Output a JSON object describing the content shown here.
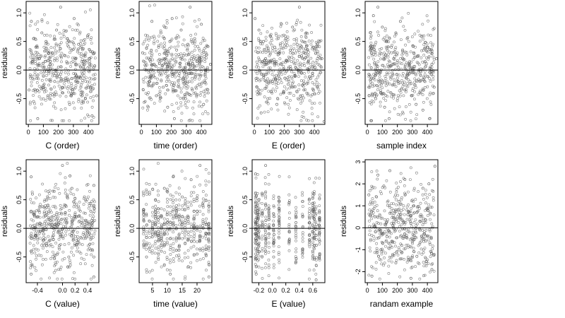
{
  "figure": {
    "background": "#ffffff",
    "point_color": "#555555",
    "axis_color": "#000000"
  },
  "chart_data": [
    {
      "type": "scatter",
      "xlabel": "C (order)",
      "ylabel": "residuals",
      "xlim": [
        -15,
        470
      ],
      "ylim": [
        -0.95,
        1.2
      ],
      "xticks": [
        0,
        100,
        200,
        300,
        400
      ],
      "xtick_labels": [
        "0",
        "100",
        "200",
        "300",
        "400"
      ],
      "yticks": [
        -0.5,
        0.0,
        0.5,
        1.0
      ],
      "ytick_labels": [
        "-0.5",
        "0.0",
        "0.5",
        "1.0"
      ],
      "hline": 0,
      "n_points": 470,
      "x": [
        5,
        20,
        35,
        50,
        62,
        75,
        90,
        105,
        118,
        130,
        145,
        160,
        175,
        188,
        200,
        215,
        230,
        245,
        260,
        275,
        290,
        305,
        320,
        335,
        350,
        365,
        380,
        395,
        410,
        425,
        440,
        455
      ],
      "y": [
        -0.35,
        0.85,
        -0.55,
        0.4,
        -0.85,
        0.2,
        0.65,
        -0.25,
        0.5,
        -0.45,
        0.1,
        0.3,
        -0.2,
        0.7,
        0.05,
        1.1,
        -0.4,
        0.25,
        0.55,
        -0.6,
        0.35,
        0.9,
        -0.1,
        0.45,
        -0.3,
        0.15,
        -0.5,
        0.6,
        0.2,
        -0.8,
        0.3,
        -0.45
      ]
    },
    {
      "type": "scatter",
      "xlabel": "time (order)",
      "ylabel": "residuals",
      "xlim": [
        -15,
        470
      ],
      "ylim": [
        -0.95,
        1.2
      ],
      "xticks": [
        0,
        100,
        200,
        300,
        400
      ],
      "xtick_labels": [
        "0",
        "100",
        "200",
        "300",
        "400"
      ],
      "yticks": [
        -0.5,
        0.0,
        0.5,
        1.0
      ],
      "ytick_labels": [
        "-0.5",
        "0.0",
        "0.5",
        "1.0"
      ],
      "hline": 0,
      "n_points": 470,
      "x": [
        8,
        25,
        40,
        55,
        70,
        85,
        100,
        115,
        130,
        145,
        160,
        175,
        190,
        205,
        220,
        235,
        250,
        265,
        280,
        295,
        310,
        325,
        340,
        355,
        370,
        385,
        400,
        415,
        430,
        445,
        460
      ],
      "y": [
        0.3,
        -0.55,
        0.6,
        -0.2,
        0.85,
        0.1,
        -0.45,
        0.4,
        0.65,
        -0.3,
        0.2,
        -0.65,
        0.5,
        0.9,
        -0.85,
        0.35,
        -0.1,
        0.7,
        0.25,
        -0.5,
        0.45,
        1.1,
        -0.35,
        0.55,
        0.15,
        -0.25,
        0.8,
        -0.6,
        0.3,
        -0.4,
        0.1
      ]
    },
    {
      "type": "scatter",
      "xlabel": "E (order)",
      "ylabel": "residuals",
      "xlim": [
        -15,
        470
      ],
      "ylim": [
        -0.95,
        1.2
      ],
      "xticks": [
        0,
        100,
        200,
        300,
        400
      ],
      "xtick_labels": [
        "0",
        "100",
        "200",
        "300",
        "400"
      ],
      "yticks": [
        -0.5,
        0.0,
        0.5,
        1.0
      ],
      "ytick_labels": [
        "-0.5",
        "0.0",
        "0.5",
        "1.0"
      ],
      "hline": 0,
      "n_points": 470,
      "x": [
        5,
        18,
        30,
        45,
        60,
        75,
        90,
        105,
        120,
        135,
        150,
        165,
        180,
        195,
        210,
        225,
        240,
        255,
        270,
        285,
        300,
        315,
        330,
        345,
        360,
        375,
        390,
        405,
        420,
        435,
        450,
        465
      ],
      "y": [
        0.9,
        -0.3,
        0.7,
        -0.75,
        0.5,
        0.2,
        -0.5,
        0.6,
        -0.2,
        0.4,
        -0.6,
        0.3,
        0.1,
        -0.4,
        0.55,
        -0.25,
        0.35,
        0.75,
        -0.1,
        0.45,
        1.1,
        0.25,
        -0.35,
        0.65,
        0.15,
        -0.15,
        0.4,
        0.05,
        -0.3,
        0.5,
        0.2,
        -0.9
      ]
    },
    {
      "type": "scatter",
      "xlabel": "sample index",
      "ylabel": "residuals",
      "xlim": [
        -15,
        470
      ],
      "ylim": [
        -0.95,
        1.2
      ],
      "xticks": [
        0,
        100,
        200,
        300,
        400
      ],
      "xtick_labels": [
        "0",
        "100",
        "200",
        "300",
        "400"
      ],
      "yticks": [
        -0.5,
        0.0,
        0.5,
        1.0
      ],
      "ytick_labels": [
        "-0.5",
        "0.0",
        "0.5",
        "1.0"
      ],
      "hline": 0,
      "n_points": 470,
      "x": [
        10,
        25,
        40,
        55,
        70,
        85,
        100,
        115,
        130,
        145,
        160,
        175,
        190,
        205,
        220,
        235,
        250,
        265,
        280,
        295,
        310,
        325,
        340,
        355,
        370,
        385,
        400,
        415,
        430,
        445,
        460
      ],
      "y": [
        -0.3,
        0.6,
        0.95,
        -0.5,
        1.1,
        0.3,
        0.75,
        -0.65,
        0.5,
        -0.85,
        0.4,
        0.2,
        0.65,
        -0.2,
        0.85,
        0.35,
        -0.35,
        0.55,
        0.1,
        -0.45,
        0.3,
        -0.6,
        0.25,
        -0.4,
        -0.7,
        0.15,
        0.4,
        -0.85,
        0.1,
        -0.3,
        0.2
      ]
    },
    {
      "type": "scatter",
      "xlabel": "C (value)",
      "ylabel": "residuals",
      "xlim": [
        -0.58,
        0.58
      ],
      "ylim": [
        -0.95,
        1.2
      ],
      "xticks": [
        -0.4,
        0.0,
        0.2,
        0.4
      ],
      "xtick_labels": [
        "-0.4",
        "0.0",
        "0.2",
        "0.4"
      ],
      "yticks": [
        -0.5,
        0.0,
        0.5,
        1.0
      ],
      "ytick_labels": [
        "-0.5",
        "0.0",
        "0.5",
        "1.0"
      ],
      "hline": 0,
      "n_points": 470,
      "x": [
        -0.5,
        -0.5,
        -0.5,
        -0.5,
        -0.48,
        -0.4,
        -0.3,
        -0.25,
        -0.15,
        -0.05,
        0.0,
        0.05,
        0.1,
        0.15,
        0.2,
        0.25,
        0.3,
        0.35,
        0.4,
        0.45,
        0.5,
        0.5,
        0.5,
        0.5,
        0.48
      ],
      "y": [
        -0.8,
        0.9,
        -0.4,
        0.3,
        0.6,
        0.2,
        -0.1,
        0.5,
        0.65,
        -0.3,
        1.1,
        0.4,
        -0.5,
        0.7,
        0.2,
        -0.2,
        0.1,
        0.55,
        -0.05,
        0.3,
        -0.85,
        0.75,
        -0.5,
        0.4,
        0.1
      ]
    },
    {
      "type": "scatter",
      "xlabel": "time (value)",
      "ylabel": "residuals",
      "xlim": [
        0.5,
        25
      ],
      "ylim": [
        -0.95,
        1.2
      ],
      "xticks": [
        5,
        10,
        15,
        20
      ],
      "xtick_labels": [
        "5",
        "10",
        "15",
        "20"
      ],
      "yticks": [
        -0.5,
        0.0,
        0.5,
        1.0
      ],
      "ytick_labels": [
        "-0.5",
        "0.0",
        "0.5",
        "1.0"
      ],
      "hline": 0,
      "n_points": 470,
      "x": [
        2,
        3,
        4,
        5,
        6,
        7,
        8,
        9,
        10,
        11,
        12,
        13,
        14,
        15,
        16,
        17,
        18,
        19,
        20,
        21,
        22,
        23,
        24
      ],
      "y": [
        0.3,
        -0.5,
        0.6,
        -0.1,
        0.5,
        0.2,
        -0.4,
        0.7,
        0.1,
        -0.8,
        0.9,
        0.35,
        -0.3,
        0.55,
        0.1,
        -0.2,
        0.85,
        0.3,
        -0.45,
        1.1,
        0.4,
        -0.1,
        -0.85
      ]
    },
    {
      "type": "scatter",
      "xlabel": "E (value)",
      "ylabel": "residuals",
      "xlim": [
        -0.3,
        0.78
      ],
      "ylim": [
        -0.95,
        1.2
      ],
      "xticks": [
        -0.2,
        0.0,
        0.2,
        0.4,
        0.6
      ],
      "xtick_labels": [
        "-0.2",
        "0.0",
        "0.2",
        "0.4",
        "0.6"
      ],
      "yticks": [
        -0.5,
        0.0,
        0.5,
        1.0
      ],
      "ytick_labels": [
        "-0.5",
        "0.0",
        "0.5",
        "1.0"
      ],
      "hline": 0,
      "n_points": 470,
      "x": [
        -0.25,
        -0.24,
        -0.22,
        -0.2,
        -0.15,
        -0.1,
        -0.05,
        0.02,
        0.1,
        0.25,
        0.35,
        0.45,
        0.55,
        0.6,
        0.62,
        0.65,
        0.7
      ],
      "y": [
        0.95,
        -0.8,
        0.4,
        -0.3,
        0.6,
        1.1,
        0.2,
        -0.5,
        0.35,
        0.45,
        0.1,
        0.2,
        -0.2,
        -0.4,
        0.3,
        -0.9,
        0.15
      ]
    },
    {
      "type": "scatter",
      "xlabel": "randam example",
      "ylabel": "residuals",
      "xlim": [
        -15,
        470
      ],
      "ylim": [
        -2.5,
        3.1
      ],
      "xticks": [
        0,
        100,
        200,
        300,
        400
      ],
      "xtick_labels": [
        "0",
        "100",
        "200",
        "300",
        "400"
      ],
      "yticks": [
        -2,
        -1,
        0,
        1,
        2,
        3
      ],
      "ytick_labels": [
        "-2",
        "-1",
        "0",
        "1",
        "2",
        "3"
      ],
      "hline": 0,
      "n_points": 470,
      "x": [
        10,
        30,
        50,
        70,
        90,
        110,
        130,
        150,
        170,
        190,
        210,
        230,
        250,
        270,
        290,
        310,
        330,
        350,
        370,
        390,
        410,
        430,
        450
      ],
      "y": [
        1.5,
        -2.2,
        0.5,
        2.4,
        -1.0,
        1.9,
        -0.4,
        2.6,
        0.1,
        -1.6,
        1.2,
        -0.8,
        2.2,
        0.6,
        -2.3,
        1.0,
        -1.3,
        0.3,
        1.8,
        -0.6,
        2.0,
        -1.9,
        2.8
      ]
    }
  ]
}
